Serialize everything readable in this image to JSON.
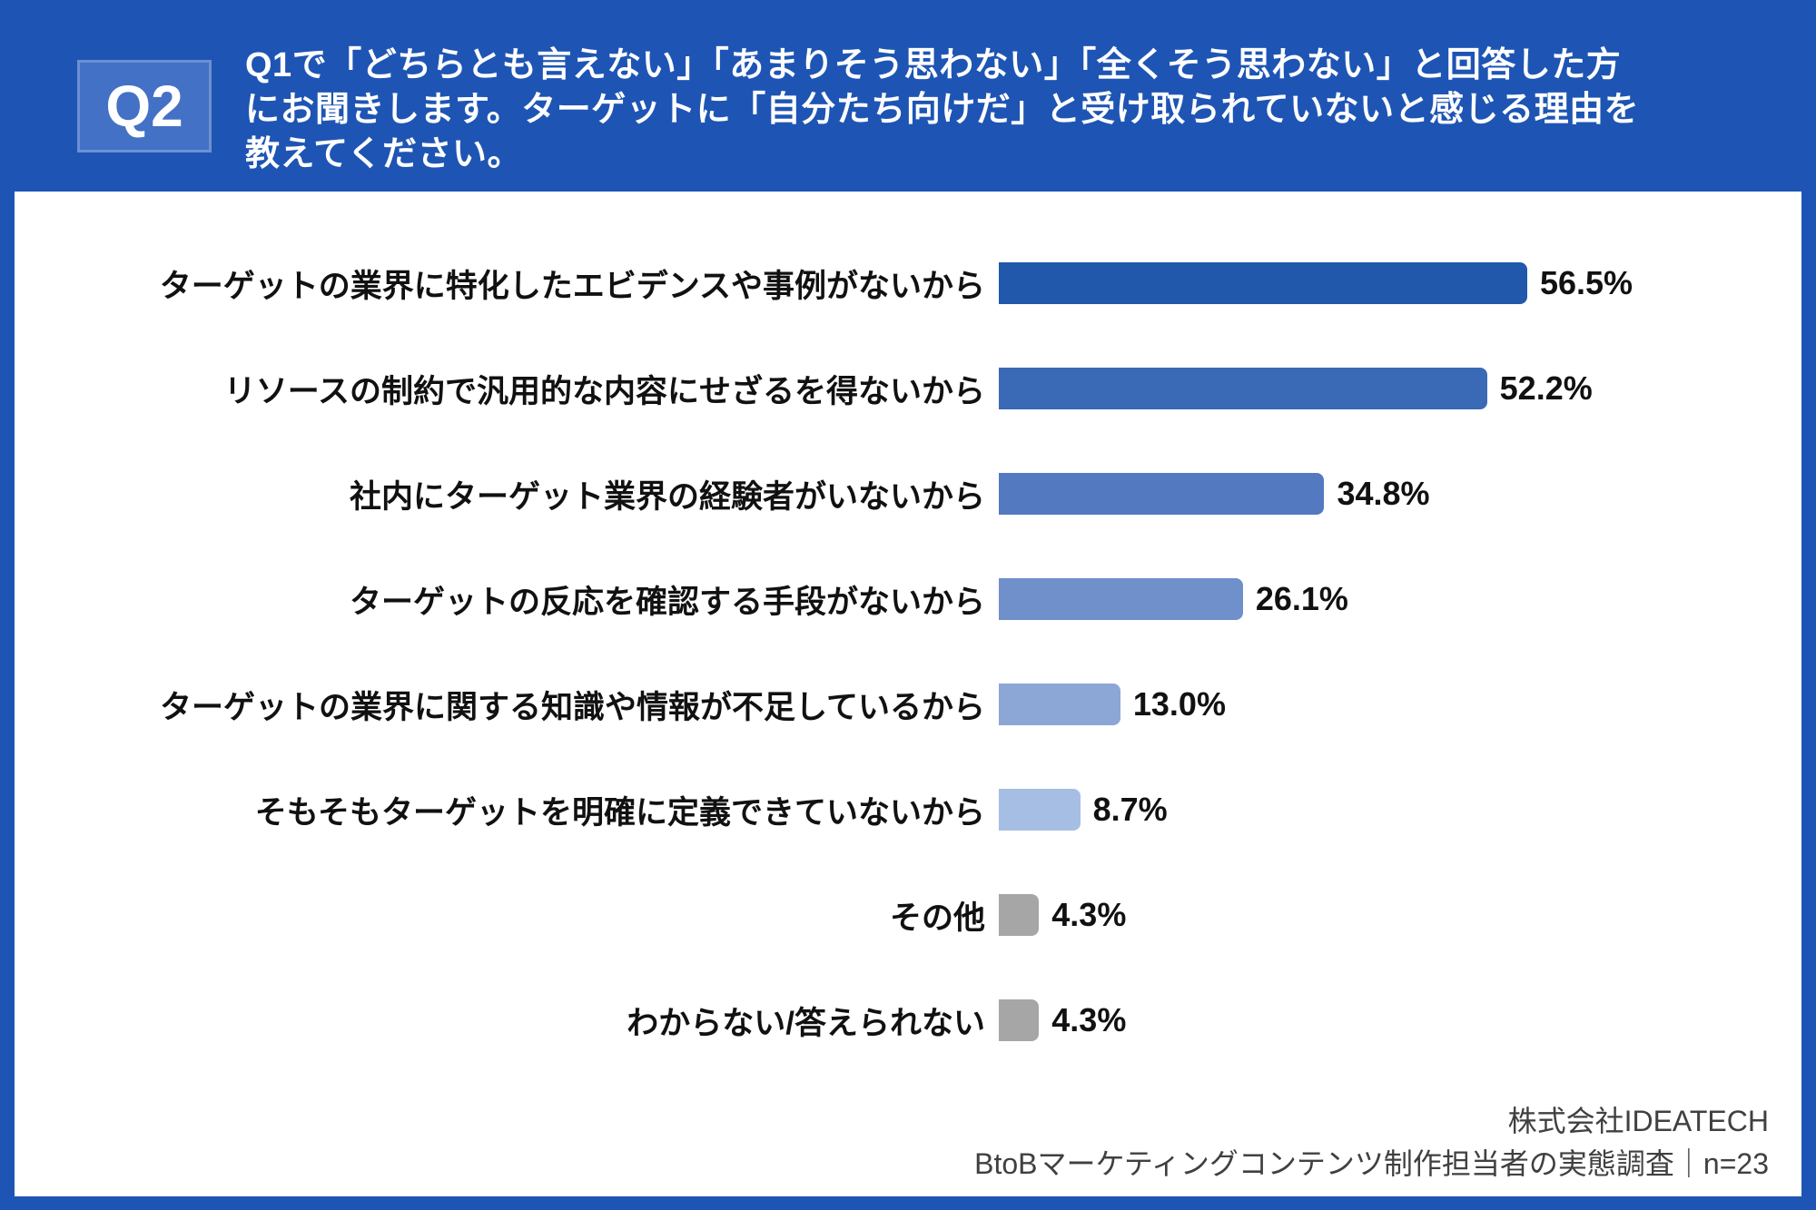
{
  "colors": {
    "frame_blue": "#1E55B4",
    "badge_blue": "#4371C6",
    "panel_white": "#FFFFFF",
    "label_black": "#111111",
    "footer_gray": "#404040",
    "gray_bar": "#A6A6A6"
  },
  "header": {
    "badge_label": "Q2",
    "question_lines": [
      "Q1で「どちらとも言えない」「あまりそう思わない」「全くそう思わない」と回答した方",
      "にお聞きします。ターゲットに「自分たち向けだ」と受け取られていないと感じる理由を",
      "教えてください。"
    ]
  },
  "chart_data": {
    "type": "bar",
    "orientation": "horizontal",
    "categories": [
      "ターゲットの業界に特化したエビデンスや事例がないから",
      "リソースの制約で汎用的な内容にせざるを得ないから",
      "社内にターゲット業界の経験者がいないから",
      "ターゲットの反応を確認する手段がないから",
      "ターゲットの業界に関する知識や情報が不足しているから",
      "そもそもターゲットを明確に定義できていないから",
      "その他",
      "わからない/答えられない"
    ],
    "values": [
      56.5,
      52.2,
      34.8,
      26.1,
      13.0,
      8.7,
      4.3,
      4.3
    ],
    "value_labels": [
      "56.5%",
      "52.2%",
      "34.8%",
      "26.1%",
      "13.0%",
      "8.7%",
      "4.3%",
      "4.3%"
    ],
    "bar_colors": [
      "#2158AC",
      "#3A69B6",
      "#5379C0",
      "#6F90CB",
      "#8CA6D6",
      "#A6BEE4",
      "#A6A6A6",
      "#A6A6A6"
    ],
    "xlim": [
      0,
      60
    ],
    "grid": false,
    "legend": false,
    "title": ""
  },
  "footer": {
    "line1": "株式会社IDEATECH",
    "line2": "BtoBマーケティングコンテンツ制作担当者の実態調査｜n=23"
  }
}
